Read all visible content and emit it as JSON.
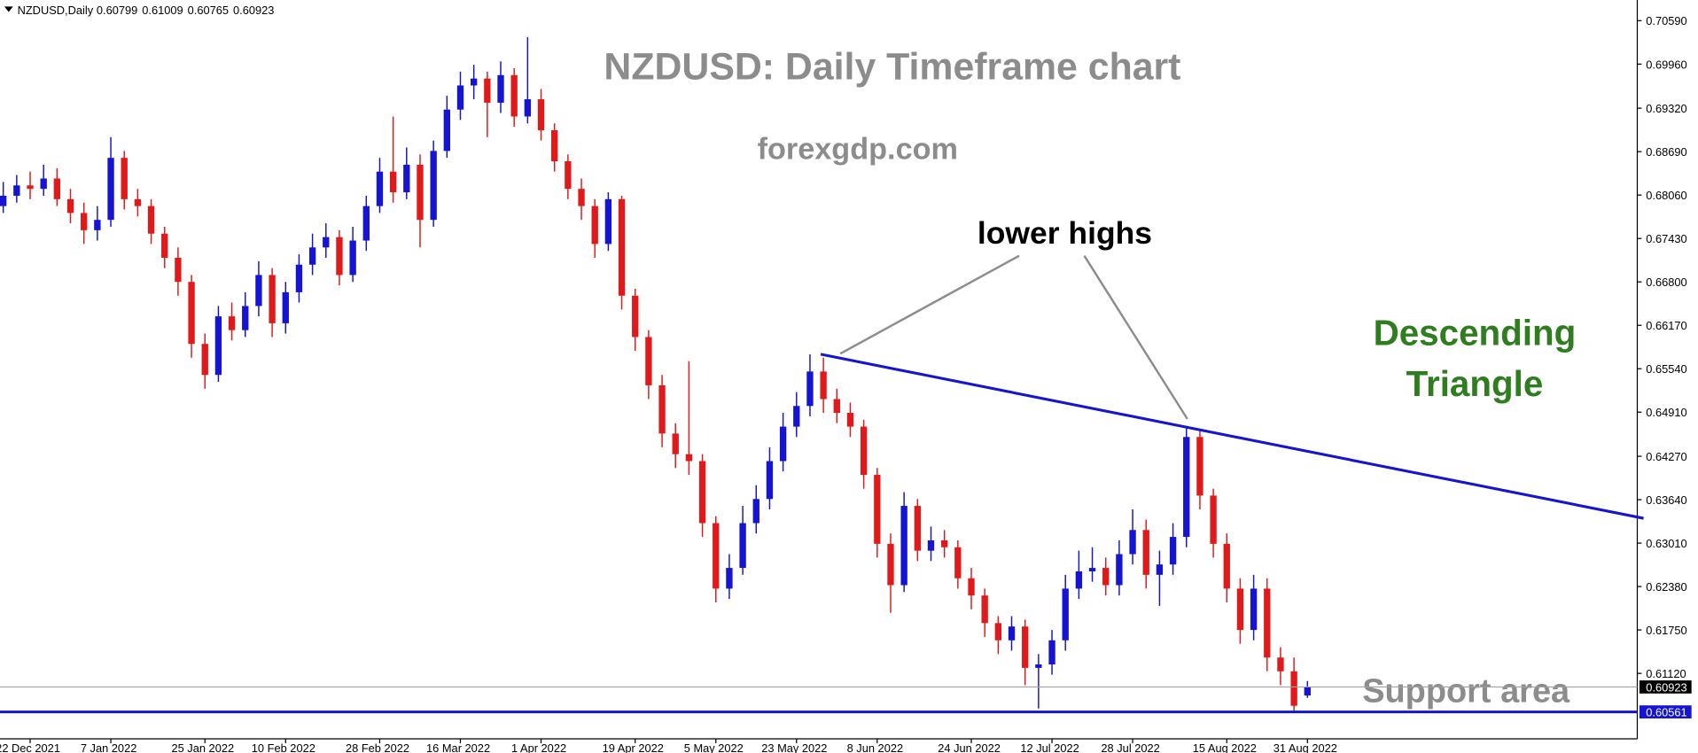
{
  "chart_data": {
    "type": "candlestick",
    "symbol": "NZDUSD,Daily",
    "title": "NZDUSD: Daily Timeframe chart",
    "subtitle": "forexgdp.com",
    "annotations": [
      "lower highs",
      "Descending",
      "Triangle",
      "Support area"
    ],
    "up_color": "#1414d2",
    "down_color": "#e01a1a",
    "categories": [
      null,
      null,
      "22 Dec 2021",
      null,
      null,
      null,
      null,
      null,
      "7 Jan 2022",
      null,
      null,
      null,
      null,
      null,
      null,
      "25 Jan 2022",
      null,
      null,
      null,
      null,
      null,
      "10 Feb 2022",
      null,
      null,
      null,
      null,
      null,
      null,
      "28 Feb 2022",
      null,
      null,
      null,
      null,
      null,
      "16 Mar 2022",
      null,
      null,
      null,
      null,
      null,
      "1 Apr 2022",
      null,
      null,
      null,
      null,
      null,
      null,
      "19 Apr 2022",
      null,
      null,
      null,
      null,
      null,
      "5 May 2022",
      null,
      null,
      null,
      null,
      null,
      "23 May 2022",
      null,
      null,
      null,
      null,
      null,
      "8 Jun 2022",
      null,
      null,
      null,
      null,
      null,
      null,
      "24 Jun 2022",
      null,
      null,
      null,
      null,
      null,
      "12 Jul 2022",
      null,
      null,
      null,
      null,
      null,
      "28 Jul 2022",
      null,
      null,
      null,
      null,
      null,
      null,
      "15 Aug 2022",
      null,
      null,
      null,
      null,
      null,
      "31 Aug 2022"
    ],
    "candles": [
      [
        0.679,
        0.6825,
        0.678,
        0.6805
      ],
      [
        0.6805,
        0.6835,
        0.6795,
        0.682
      ],
      [
        0.682,
        0.684,
        0.68,
        0.6815
      ],
      [
        0.6815,
        0.685,
        0.6805,
        0.683
      ],
      [
        0.683,
        0.6845,
        0.679,
        0.68
      ],
      [
        0.68,
        0.6815,
        0.6765,
        0.678
      ],
      [
        0.678,
        0.6795,
        0.6735,
        0.6755
      ],
      [
        0.6755,
        0.679,
        0.674,
        0.677
      ],
      [
        0.677,
        0.689,
        0.676,
        0.686
      ],
      [
        0.686,
        0.687,
        0.6785,
        0.68
      ],
      [
        0.68,
        0.6815,
        0.6775,
        0.679
      ],
      [
        0.679,
        0.68,
        0.6735,
        0.675
      ],
      [
        0.675,
        0.676,
        0.67,
        0.6715
      ],
      [
        0.6715,
        0.673,
        0.666,
        0.668
      ],
      [
        0.668,
        0.669,
        0.657,
        0.659
      ],
      [
        0.659,
        0.6605,
        0.6525,
        0.6545
      ],
      [
        0.6545,
        0.6645,
        0.6535,
        0.663
      ],
      [
        0.663,
        0.665,
        0.6595,
        0.661
      ],
      [
        0.661,
        0.6665,
        0.66,
        0.6645
      ],
      [
        0.6645,
        0.671,
        0.663,
        0.669
      ],
      [
        0.669,
        0.67,
        0.66,
        0.662
      ],
      [
        0.662,
        0.668,
        0.6605,
        0.6665
      ],
      [
        0.6665,
        0.672,
        0.665,
        0.6705
      ],
      [
        0.6705,
        0.675,
        0.669,
        0.673
      ],
      [
        0.673,
        0.6765,
        0.6715,
        0.6745
      ],
      [
        0.6745,
        0.6755,
        0.6675,
        0.669
      ],
      [
        0.669,
        0.676,
        0.668,
        0.674
      ],
      [
        0.674,
        0.6805,
        0.6725,
        0.679
      ],
      [
        0.679,
        0.686,
        0.678,
        0.684
      ],
      [
        0.684,
        0.692,
        0.6795,
        0.681
      ],
      [
        0.681,
        0.6875,
        0.68,
        0.685
      ],
      [
        0.685,
        0.6865,
        0.673,
        0.677
      ],
      [
        0.677,
        0.6885,
        0.676,
        0.687
      ],
      [
        0.687,
        0.695,
        0.686,
        0.693
      ],
      [
        0.693,
        0.6985,
        0.6915,
        0.6965
      ],
      [
        0.6965,
        0.6995,
        0.6945,
        0.6975
      ],
      [
        0.6975,
        0.6985,
        0.689,
        0.694
      ],
      [
        0.694,
        0.7,
        0.6925,
        0.698
      ],
      [
        0.698,
        0.699,
        0.6905,
        0.692
      ],
      [
        0.692,
        0.7035,
        0.691,
        0.6945
      ],
      [
        0.6945,
        0.696,
        0.6885,
        0.69
      ],
      [
        0.69,
        0.691,
        0.684,
        0.6855
      ],
      [
        0.6855,
        0.6865,
        0.68,
        0.6815
      ],
      [
        0.6815,
        0.683,
        0.677,
        0.679
      ],
      [
        0.679,
        0.68,
        0.6715,
        0.6735
      ],
      [
        0.6735,
        0.681,
        0.6725,
        0.68
      ],
      [
        0.68,
        0.6805,
        0.664,
        0.666
      ],
      [
        0.666,
        0.667,
        0.658,
        0.66
      ],
      [
        0.66,
        0.661,
        0.651,
        0.653
      ],
      [
        0.653,
        0.6545,
        0.644,
        0.646
      ],
      [
        0.646,
        0.6475,
        0.641,
        0.643
      ],
      [
        0.643,
        0.6565,
        0.64,
        0.642
      ],
      [
        0.642,
        0.643,
        0.631,
        0.633
      ],
      [
        0.633,
        0.634,
        0.6215,
        0.6235
      ],
      [
        0.6235,
        0.6285,
        0.622,
        0.6265
      ],
      [
        0.6265,
        0.6355,
        0.6255,
        0.633
      ],
      [
        0.633,
        0.6385,
        0.6315,
        0.6365
      ],
      [
        0.6365,
        0.644,
        0.635,
        0.642
      ],
      [
        0.642,
        0.649,
        0.6405,
        0.647
      ],
      [
        0.647,
        0.652,
        0.6455,
        0.65
      ],
      [
        0.65,
        0.6575,
        0.6485,
        0.655
      ],
      [
        0.655,
        0.657,
        0.649,
        0.651
      ],
      [
        0.651,
        0.6525,
        0.6475,
        0.649
      ],
      [
        0.649,
        0.6505,
        0.6455,
        0.647
      ],
      [
        0.647,
        0.648,
        0.638,
        0.64
      ],
      [
        0.64,
        0.641,
        0.628,
        0.63
      ],
      [
        0.63,
        0.6315,
        0.62,
        0.624
      ],
      [
        0.624,
        0.6375,
        0.623,
        0.6355
      ],
      [
        0.6355,
        0.6365,
        0.6275,
        0.629
      ],
      [
        0.629,
        0.6325,
        0.6275,
        0.6305
      ],
      [
        0.6305,
        0.632,
        0.628,
        0.6295
      ],
      [
        0.6295,
        0.6305,
        0.6235,
        0.625
      ],
      [
        0.625,
        0.6265,
        0.6205,
        0.6225
      ],
      [
        0.6225,
        0.6235,
        0.6165,
        0.6185
      ],
      [
        0.6185,
        0.6195,
        0.614,
        0.616
      ],
      [
        0.616,
        0.6195,
        0.6145,
        0.618
      ],
      [
        0.618,
        0.619,
        0.6095,
        0.612
      ],
      [
        0.612,
        0.614,
        0.6061,
        0.6125
      ],
      [
        0.6125,
        0.6175,
        0.611,
        0.616
      ],
      [
        0.616,
        0.6255,
        0.6145,
        0.6235
      ],
      [
        0.6235,
        0.629,
        0.622,
        0.626
      ],
      [
        0.626,
        0.6295,
        0.6245,
        0.6265
      ],
      [
        0.6265,
        0.628,
        0.6225,
        0.624
      ],
      [
        0.624,
        0.6305,
        0.6225,
        0.6285
      ],
      [
        0.6285,
        0.635,
        0.627,
        0.632
      ],
      [
        0.632,
        0.6335,
        0.6235,
        0.6255
      ],
      [
        0.6255,
        0.629,
        0.621,
        0.627
      ],
      [
        0.627,
        0.633,
        0.6255,
        0.631
      ],
      [
        0.631,
        0.647,
        0.6295,
        0.6455
      ],
      [
        0.6455,
        0.6465,
        0.635,
        0.637
      ],
      [
        0.637,
        0.638,
        0.628,
        0.63
      ],
      [
        0.63,
        0.6315,
        0.6215,
        0.6235
      ],
      [
        0.6235,
        0.625,
        0.6155,
        0.6175
      ],
      [
        0.6175,
        0.6255,
        0.616,
        0.6235
      ],
      [
        0.6235,
        0.625,
        0.6115,
        0.6135
      ],
      [
        0.6135,
        0.615,
        0.6095,
        0.6115
      ],
      [
        0.6115,
        0.6135,
        0.6056,
        0.6065
      ],
      [
        0.60799,
        0.61009,
        0.60765,
        0.60923
      ]
    ],
    "ylim": [
      0.6017,
      0.7089
    ],
    "yticks": [
      {
        "value": 0.7059,
        "label": "0.70590"
      },
      {
        "value": 0.6996,
        "label": "0.69960"
      },
      {
        "value": 0.6932,
        "label": "0.69320"
      },
      {
        "value": 0.6869,
        "label": "0.68690"
      },
      {
        "value": 0.6806,
        "label": "0.68060"
      },
      {
        "value": 0.6743,
        "label": "0.67430"
      },
      {
        "value": 0.668,
        "label": "0.66800"
      },
      {
        "value": 0.6617,
        "label": "0.66170"
      },
      {
        "value": 0.6554,
        "label": "0.65540"
      },
      {
        "value": 0.6491,
        "label": "0.64910"
      },
      {
        "value": 0.6427,
        "label": "0.64270"
      },
      {
        "value": 0.6364,
        "label": "0.63640"
      },
      {
        "value": 0.6301,
        "label": "0.63010"
      },
      {
        "value": 0.6238,
        "label": "0.62380"
      },
      {
        "value": 0.6175,
        "label": "0.61750"
      },
      {
        "value": 0.6112,
        "label": "0.61120"
      }
    ],
    "price_lines": [
      {
        "value": 0.60923,
        "color": "#a0a0a0",
        "box": "#000000"
      },
      {
        "value": 0.60561,
        "color": "#1414d2",
        "box": "#1414d2"
      }
    ],
    "trendline": {
      "color": "#1414d2",
      "x": [
        60.8,
        122
      ],
      "y": [
        0.6575,
        0.6337
      ]
    },
    "grid": false
  }
}
